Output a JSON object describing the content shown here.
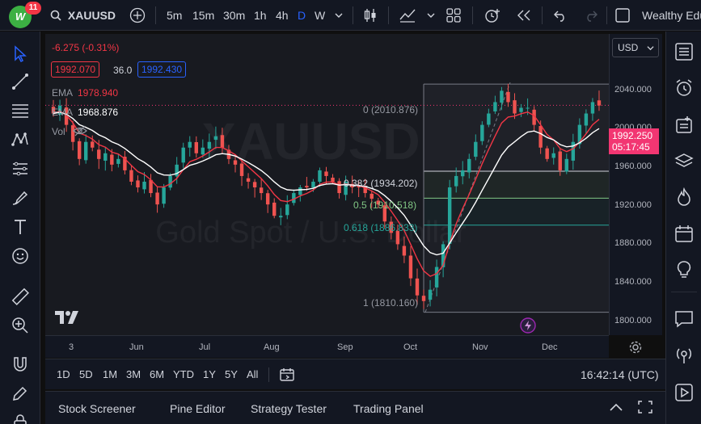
{
  "header": {
    "badge_count": "11",
    "symbol": "XAUUSD",
    "timeframes": [
      "5m",
      "15m",
      "30m",
      "1h",
      "4h",
      "D",
      "W"
    ],
    "active_timeframe": "D",
    "brand_text": "Wealthy Edu"
  },
  "legend": {
    "change": "-6.275 (-0.31%)",
    "bid": "1992.070",
    "spread": "36.0",
    "ask": "1992.430",
    "ema1_label": "EMA",
    "ema1_value": "1978.940",
    "ema2_label": "EMA",
    "ema2_value": "1968.876",
    "vol_label": "Vol"
  },
  "watermark": {
    "symbol": "XAUUSD",
    "description": "Gold Spot / U.S. Dollar"
  },
  "price_scale": {
    "currency": "USD",
    "ticks": [
      "2040.000",
      "2000.000",
      "1960.000",
      "1920.000",
      "1880.000",
      "1840.000",
      "1800.000"
    ],
    "current_price": "1992.250",
    "countdown": "05:17:45"
  },
  "time_scale": {
    "ticks": [
      "3",
      "Jun",
      "Jul",
      "Aug",
      "Sep",
      "Oct",
      "Nov",
      "Dec"
    ]
  },
  "fib": {
    "levels": [
      {
        "label": "0 (2010.876)",
        "price": 2010.876
      },
      {
        "label": "0.382 (1934.202)",
        "price": 1934.202
      },
      {
        "label": "0.5 (1910.518)",
        "price": 1910.518
      },
      {
        "label": "0.618 (1886.833)",
        "price": 1886.833
      },
      {
        "label": "1 (1810.160)",
        "price": 1810.16
      }
    ]
  },
  "range_bar": {
    "ranges": [
      "1D",
      "5D",
      "1M",
      "3M",
      "6M",
      "YTD",
      "1Y",
      "5Y",
      "All"
    ],
    "clock": "16:42:14 (UTC)"
  },
  "bottom_panel": {
    "tabs": [
      "Stock Screener",
      "Pine Editor",
      "Strategy Tester",
      "Trading Panel"
    ]
  },
  "colors": {
    "up": "#26a69a",
    "down": "#ef5350",
    "ema_fast": "#f23645",
    "ema_slow": "#ffffff",
    "accent": "#2962ff",
    "brand": "#3cb043"
  },
  "chart_data": {
    "type": "candlestick",
    "ylim": [
      1790,
      2055
    ],
    "approx_closes": [
      1985,
      1992,
      1975,
      1960,
      1945,
      1960,
      1955,
      1945,
      1950,
      1940,
      1945,
      1935,
      1925,
      1920,
      1925,
      1915,
      1905,
      1920,
      1930,
      1940,
      1955,
      1960,
      1950,
      1955,
      1960,
      1965,
      1955,
      1945,
      1940,
      1930,
      1925,
      1920,
      1915,
      1905,
      1895,
      1895,
      1905,
      1915,
      1920,
      1920,
      1925,
      1935,
      1930,
      1925,
      1915,
      1925,
      1920,
      1920,
      1915,
      1910,
      1905,
      1890,
      1880,
      1870,
      1860,
      1840,
      1825,
      1820,
      1830,
      1850,
      1870,
      1920,
      1930,
      1935,
      1945,
      1960,
      1975,
      1985,
      1995,
      2005,
      1995,
      1985,
      1990,
      1990,
      1975,
      1955,
      1945,
      1950,
      1935,
      1945,
      1960,
      1975,
      1985,
      1995,
      1992
    ]
  }
}
